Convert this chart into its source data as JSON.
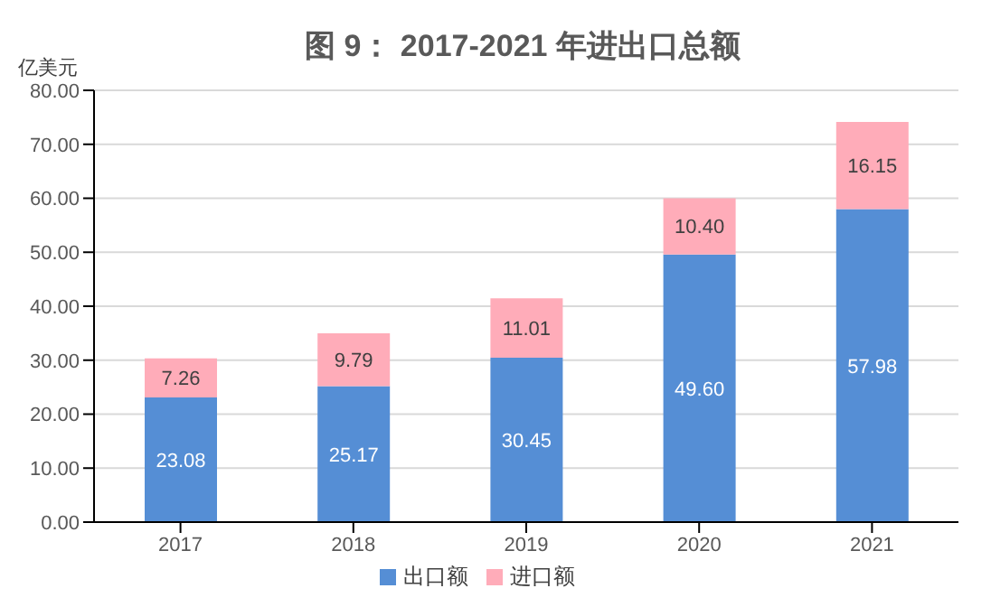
{
  "chart_data": {
    "type": "bar",
    "title": "图 9： 2017-2021 年进出口总额",
    "ylabel": "亿美元",
    "categories": [
      "2017",
      "2018",
      "2019",
      "2020",
      "2021"
    ],
    "stacked": true,
    "series": [
      {
        "name": "出口额",
        "color": "#558ed5",
        "values": [
          23.08,
          25.17,
          30.45,
          49.6,
          57.98
        ],
        "value_labels": [
          "23.08",
          "25.17",
          "30.45",
          "49.60",
          "57.98"
        ]
      },
      {
        "name": "进口额",
        "color": "#ffacb9",
        "values": [
          7.26,
          9.79,
          11.01,
          10.4,
          16.15
        ],
        "value_labels": [
          "7.26",
          "9.79",
          "11.01",
          "10.40",
          "16.15"
        ]
      }
    ],
    "ylim": [
      0,
      80
    ],
    "yticks": [
      {
        "value": 0,
        "label": "0.00"
      },
      {
        "value": 10,
        "label": "10.00"
      },
      {
        "value": 20,
        "label": "20.00"
      },
      {
        "value": 30,
        "label": "30.00"
      },
      {
        "value": 40,
        "label": "40.00"
      },
      {
        "value": 50,
        "label": "50.00"
      },
      {
        "value": 60,
        "label": "60.00"
      },
      {
        "value": 70,
        "label": "70.00"
      },
      {
        "value": 80,
        "label": "80.00"
      }
    ],
    "grid": "y",
    "legend": "bottom"
  }
}
